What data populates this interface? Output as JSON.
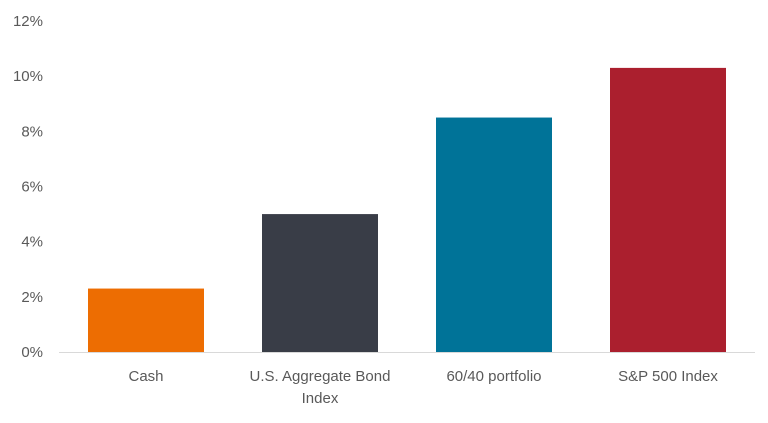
{
  "chart_data": {
    "type": "bar",
    "title": "",
    "xlabel": "",
    "ylabel": "",
    "categories": [
      [
        "Cash"
      ],
      [
        "U.S. Aggregate Bond",
        "Index"
      ],
      [
        "60/40 portfolio"
      ],
      [
        "S&P 500 Index"
      ]
    ],
    "values": [
      2.3,
      5.0,
      8.5,
      10.3
    ],
    "colors": [
      "#ED6D02",
      "#393D47",
      "#007398",
      "#AB1F2E"
    ],
    "ylim": [
      0,
      12
    ],
    "yticks": [
      0,
      2,
      4,
      6,
      8,
      10,
      12
    ],
    "ytick_labels": [
      "0%",
      "2%",
      "4%",
      "6%",
      "8%",
      "10%",
      "12%"
    ],
    "grid": false,
    "legend": "none"
  }
}
